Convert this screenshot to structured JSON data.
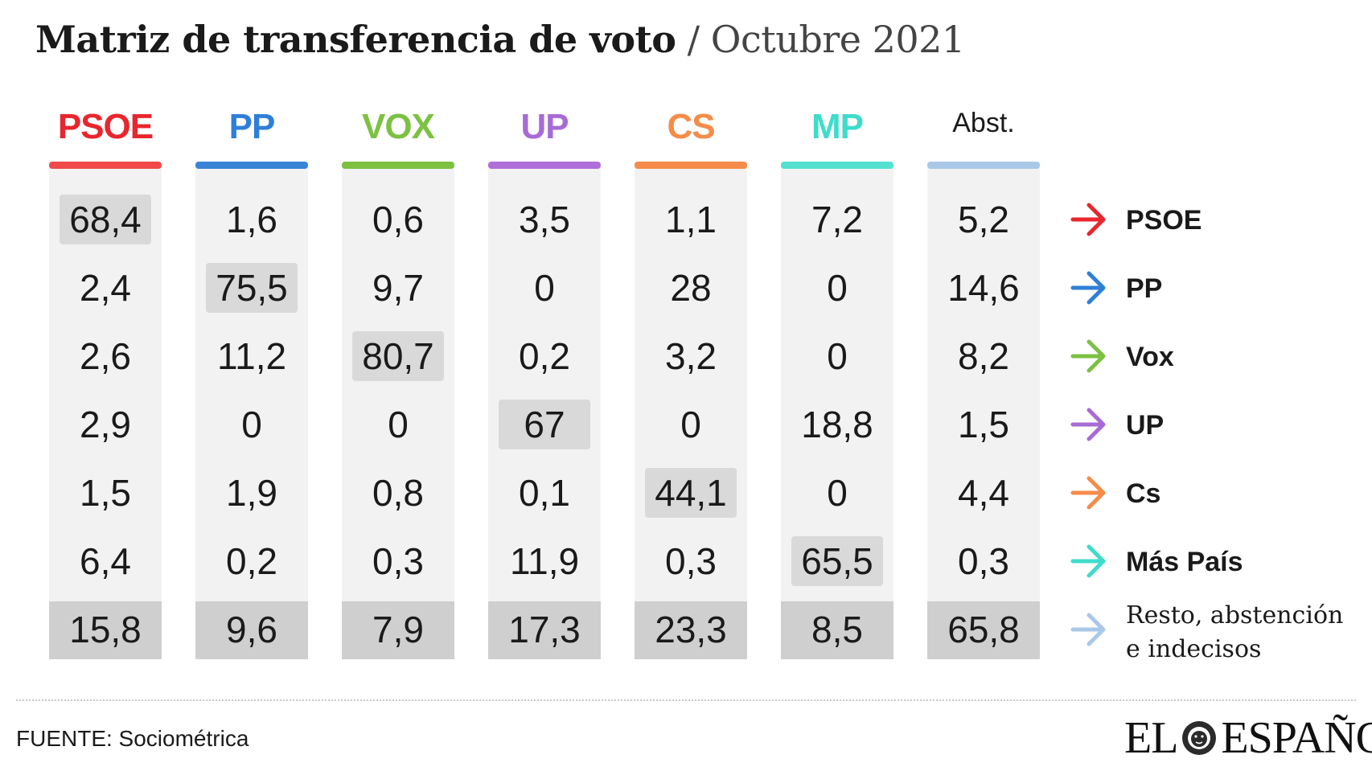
{
  "header": {
    "title_main": "Matriz de transferencia de voto",
    "title_sep": "/",
    "title_sub": "Octubre 2021"
  },
  "chart_data": {
    "type": "table",
    "columns": [
      {
        "label": "PSOE",
        "color": "#e8262d",
        "bar_color": "#f04a4a"
      },
      {
        "label": "PP",
        "color": "#2f7fd8",
        "bar_color": "#3a84d6"
      },
      {
        "label": "VOX",
        "color": "#7cc142",
        "bar_color": "#7cc142"
      },
      {
        "label": "UP",
        "color": "#a86bd6",
        "bar_color": "#b06fd8"
      },
      {
        "label": "CS",
        "color": "#f58c4a",
        "bar_color": "#f58c4a"
      },
      {
        "label": "MP",
        "color": "#3fdccb",
        "bar_color": "#54e0cf"
      },
      {
        "label": "Abst.",
        "color": "#1a1a1a",
        "bar_color": "#a9c8e8"
      }
    ],
    "rows": [
      {
        "label": "PSOE",
        "arrow_color": "#e8262d",
        "values": [
          "68,4",
          "1,6",
          "0,6",
          "3,5",
          "1,1",
          "7,2",
          "5,2"
        ]
      },
      {
        "label": "PP",
        "arrow_color": "#2f7fd8",
        "values": [
          "2,4",
          "75,5",
          "9,7",
          "0",
          "28",
          "0",
          "14,6"
        ]
      },
      {
        "label": "Vox",
        "arrow_color": "#7cc142",
        "values": [
          "2,6",
          "11,2",
          "80,7",
          "0,2",
          "3,2",
          "0",
          "8,2"
        ]
      },
      {
        "label": "UP",
        "arrow_color": "#a86bd6",
        "values": [
          "2,9",
          "0",
          "0",
          "67",
          "0",
          "18,8",
          "1,5"
        ]
      },
      {
        "label": "Cs",
        "arrow_color": "#f58c4a",
        "values": [
          "1,5",
          "1,9",
          "0,8",
          "0,1",
          "44,1",
          "0",
          "4,4"
        ]
      },
      {
        "label": "Más País",
        "arrow_color": "#3fdccb",
        "values": [
          "6,4",
          "0,2",
          "0,3",
          "11,9",
          "0,3",
          "65,5",
          "0,3"
        ]
      },
      {
        "label_lines": [
          "Resto, abstención",
          "e indecisos"
        ],
        "arrow_color": "#a9c8e8",
        "values": [
          "15,8",
          "9,6",
          "7,9",
          "17,3",
          "23,3",
          "8,5",
          "65,8"
        ]
      }
    ],
    "diagonal_highlight_color": "#d9d9d9",
    "last_row_fill": "#cfcfcf",
    "column_fill": "#f2f2f2"
  },
  "footer": {
    "source": "FUENTE: Sociométrica",
    "logo_left": "EL",
    "logo_right": "ESPAÑOL"
  }
}
